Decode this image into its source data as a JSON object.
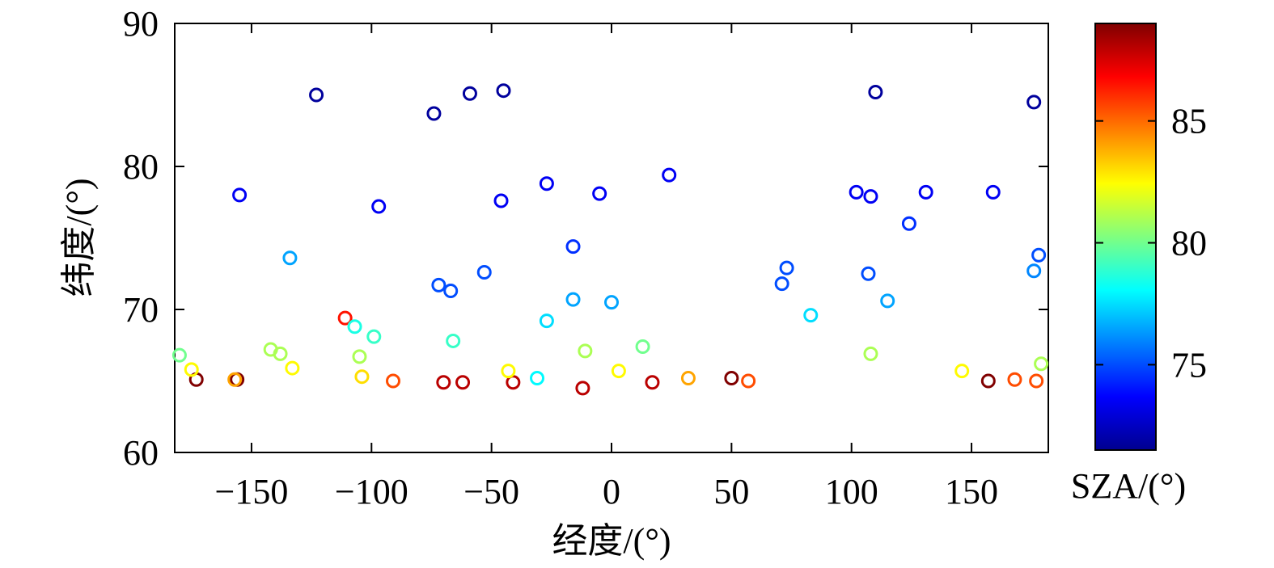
{
  "chart_data": {
    "type": "scatter",
    "title": "",
    "xlabel": "经度/(°)",
    "ylabel": "纬度/(°)",
    "xlim": [
      -182,
      182
    ],
    "ylim": [
      60,
      90
    ],
    "xticks": [
      -150,
      -100,
      -50,
      0,
      50,
      100,
      150
    ],
    "xtick_labels": [
      "−150",
      "−100",
      "−50",
      "0",
      "50",
      "100",
      "150"
    ],
    "yticks": [
      60,
      70,
      80,
      90
    ],
    "ytick_labels": [
      "60",
      "70",
      "80",
      "90"
    ],
    "grid": false,
    "marker": "open-circle",
    "colorbar": {
      "label": "SZA/(°)",
      "colormap": "jet",
      "clim": [
        71.5,
        89.0
      ],
      "ticks": [
        75,
        80,
        85
      ],
      "tick_labels": [
        "75",
        "80",
        "85"
      ]
    },
    "points": [
      {
        "lon": -173,
        "lat": 65.1,
        "sza": 89.0
      },
      {
        "lon": -156,
        "lat": 65.1,
        "sza": 89.0
      },
      {
        "lon": 50,
        "lat": 65.2,
        "sza": 89.0
      },
      {
        "lon": 157,
        "lat": 65.0,
        "sza": 89.0
      },
      {
        "lon": -70,
        "lat": 64.9,
        "sza": 88.0
      },
      {
        "lon": -62,
        "lat": 64.9,
        "sza": 88.0
      },
      {
        "lon": -41,
        "lat": 64.9,
        "sza": 88.0
      },
      {
        "lon": -12,
        "lat": 64.5,
        "sza": 88.0
      },
      {
        "lon": 17,
        "lat": 64.9,
        "sza": 88.0
      },
      {
        "lon": -111,
        "lat": 69.4,
        "sza": 86.5
      },
      {
        "lon": -91,
        "lat": 65.0,
        "sza": 85.5
      },
      {
        "lon": 57,
        "lat": 65.0,
        "sza": 85.5
      },
      {
        "lon": 168,
        "lat": 65.1,
        "sza": 85.5
      },
      {
        "lon": 177,
        "lat": 65.0,
        "sza": 85.5
      },
      {
        "lon": 32,
        "lat": 65.2,
        "sza": 84.0
      },
      {
        "lon": -157,
        "lat": 65.1,
        "sza": 84.0
      },
      {
        "lon": -104,
        "lat": 65.3,
        "sza": 83.0
      },
      {
        "lon": -175,
        "lat": 65.8,
        "sza": 82.5
      },
      {
        "lon": -133,
        "lat": 65.9,
        "sza": 82.5
      },
      {
        "lon": -43,
        "lat": 65.7,
        "sza": 82.5
      },
      {
        "lon": 3,
        "lat": 65.7,
        "sza": 82.5
      },
      {
        "lon": 146,
        "lat": 65.7,
        "sza": 82.5
      },
      {
        "lon": -142,
        "lat": 67.2,
        "sza": 81.0
      },
      {
        "lon": -138,
        "lat": 66.9,
        "sza": 81.0
      },
      {
        "lon": -105,
        "lat": 66.7,
        "sza": 81.0
      },
      {
        "lon": -11,
        "lat": 67.1,
        "sza": 81.0
      },
      {
        "lon": 108,
        "lat": 66.9,
        "sza": 81.0
      },
      {
        "lon": 179,
        "lat": 66.2,
        "sza": 81.0
      },
      {
        "lon": -180,
        "lat": 66.8,
        "sza": 80.0
      },
      {
        "lon": 13,
        "lat": 67.4,
        "sza": 80.0
      },
      {
        "lon": -66,
        "lat": 67.8,
        "sza": 79.0
      },
      {
        "lon": -99,
        "lat": 68.1,
        "sza": 79.0
      },
      {
        "lon": -107,
        "lat": 68.8,
        "sza": 78.5
      },
      {
        "lon": -31,
        "lat": 65.2,
        "sza": 78.0
      },
      {
        "lon": -27,
        "lat": 69.2,
        "sza": 77.5
      },
      {
        "lon": 83,
        "lat": 69.6,
        "sza": 77.5
      },
      {
        "lon": -134,
        "lat": 73.6,
        "sza": 76.5
      },
      {
        "lon": -16,
        "lat": 70.7,
        "sza": 76.5
      },
      {
        "lon": 0,
        "lat": 70.5,
        "sza": 76.5
      },
      {
        "lon": 115,
        "lat": 70.6,
        "sza": 76.5
      },
      {
        "lon": 176,
        "lat": 72.7,
        "sza": 76.0
      },
      {
        "lon": -72,
        "lat": 71.7,
        "sza": 75.0
      },
      {
        "lon": -67,
        "lat": 71.3,
        "sza": 75.0
      },
      {
        "lon": -53,
        "lat": 72.6,
        "sza": 75.0
      },
      {
        "lon": 71,
        "lat": 71.8,
        "sza": 75.0
      },
      {
        "lon": 73,
        "lat": 72.9,
        "sza": 75.0
      },
      {
        "lon": 107,
        "lat": 72.5,
        "sza": 75.0
      },
      {
        "lon": 178,
        "lat": 73.8,
        "sza": 75.0
      },
      {
        "lon": -16,
        "lat": 74.4,
        "sza": 74.5
      },
      {
        "lon": 124,
        "lat": 76.0,
        "sza": 74.5
      },
      {
        "lon": -155,
        "lat": 78.0,
        "sza": 73.5
      },
      {
        "lon": -97,
        "lat": 77.2,
        "sza": 73.5
      },
      {
        "lon": -46,
        "lat": 77.6,
        "sza": 73.5
      },
      {
        "lon": -27,
        "lat": 78.8,
        "sza": 73.5
      },
      {
        "lon": -5,
        "lat": 78.1,
        "sza": 73.5
      },
      {
        "lon": 24,
        "lat": 79.4,
        "sza": 73.5
      },
      {
        "lon": 102,
        "lat": 78.2,
        "sza": 73.5
      },
      {
        "lon": 108,
        "lat": 77.9,
        "sza": 73.5
      },
      {
        "lon": 131,
        "lat": 78.2,
        "sza": 73.5
      },
      {
        "lon": 159,
        "lat": 78.2,
        "sza": 73.5
      },
      {
        "lon": -123,
        "lat": 85.0,
        "sza": 72.0
      },
      {
        "lon": -74,
        "lat": 83.7,
        "sza": 72.0
      },
      {
        "lon": -59,
        "lat": 85.1,
        "sza": 72.0
      },
      {
        "lon": -45,
        "lat": 85.3,
        "sza": 72.0
      },
      {
        "lon": 110,
        "lat": 85.2,
        "sza": 72.0
      },
      {
        "lon": 176,
        "lat": 84.5,
        "sza": 72.0
      }
    ]
  }
}
